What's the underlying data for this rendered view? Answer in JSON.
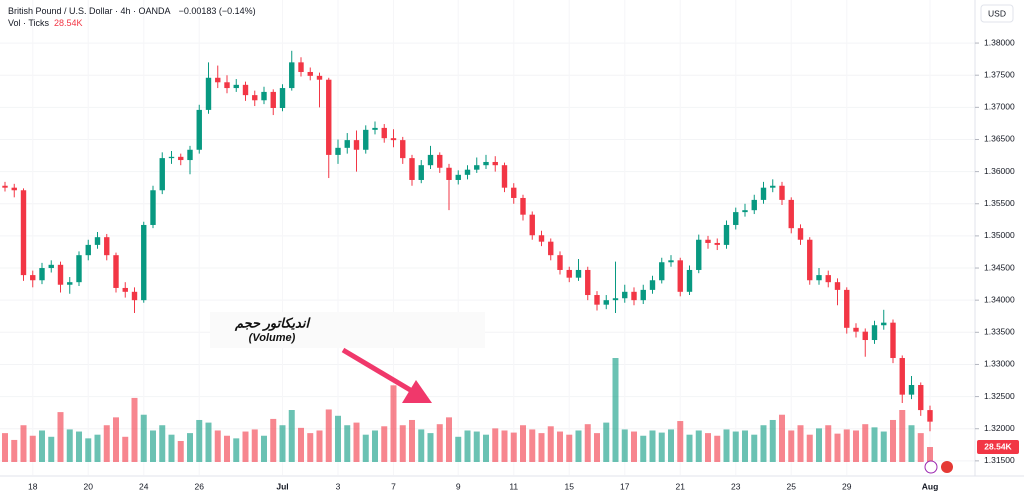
{
  "chart_data": {
    "type": "candlestick",
    "title": "British Pound / U.S. Dollar · 4h · OANDA",
    "change": "−0.00183 (−0.14%)",
    "currency": "USD",
    "up_color": "#089981",
    "down_color": "#f23645",
    "grid": true,
    "ylim": [
      1.3128,
      1.3867
    ],
    "yticks": [
      {
        "value": 1.38,
        "label": "1.38000"
      },
      {
        "value": 1.375,
        "label": "1.37500"
      },
      {
        "value": 1.37,
        "label": "1.37000"
      },
      {
        "value": 1.365,
        "label": "1.36500"
      },
      {
        "value": 1.36,
        "label": "1.36000"
      },
      {
        "value": 1.355,
        "label": "1.35500"
      },
      {
        "value": 1.35,
        "label": "1.35000"
      },
      {
        "value": 1.345,
        "label": "1.34500"
      },
      {
        "value": 1.34,
        "label": "1.34000"
      },
      {
        "value": 1.335,
        "label": "1.33500"
      },
      {
        "value": 1.33,
        "label": "1.33000"
      },
      {
        "value": 1.325,
        "label": "1.32500"
      },
      {
        "value": 1.32,
        "label": "1.32000"
      },
      {
        "value": 1.315,
        "label": "1.31500"
      }
    ],
    "categories": [
      null,
      null,
      null,
      "18",
      null,
      null,
      null,
      null,
      null,
      "20",
      null,
      null,
      null,
      null,
      null,
      "24",
      null,
      null,
      null,
      null,
      null,
      "26",
      null,
      null,
      null,
      null,
      null,
      null,
      null,
      null,
      "Jul",
      null,
      null,
      null,
      null,
      null,
      "3",
      null,
      null,
      null,
      null,
      null,
      "7",
      null,
      null,
      null,
      null,
      null,
      null,
      "9",
      null,
      null,
      null,
      null,
      null,
      "11",
      null,
      null,
      null,
      null,
      null,
      "15",
      null,
      null,
      null,
      null,
      null,
      "17",
      null,
      null,
      null,
      null,
      null,
      "21",
      null,
      null,
      null,
      null,
      null,
      "23",
      null,
      null,
      null,
      null,
      null,
      "25",
      null,
      null,
      null,
      null,
      null,
      "29",
      null,
      null,
      null,
      null,
      null,
      null,
      null,
      null,
      "Aug"
    ],
    "series": [
      {
        "name": "GBPUSD",
        "ohlc": [
          [
            1.3578,
            1.3584,
            1.3569,
            1.3575
          ],
          [
            1.3575,
            1.3581,
            1.356,
            1.3571
          ],
          [
            1.3571,
            1.3574,
            1.343,
            1.3439
          ],
          [
            1.3439,
            1.3446,
            1.342,
            1.3431
          ],
          [
            1.3431,
            1.3458,
            1.3425,
            1.345
          ],
          [
            1.345,
            1.3462,
            1.3443,
            1.3455
          ],
          [
            1.3455,
            1.346,
            1.3412,
            1.3424
          ],
          [
            1.3424,
            1.3436,
            1.341,
            1.3428
          ],
          [
            1.3428,
            1.3476,
            1.3422,
            1.347
          ],
          [
            1.347,
            1.3494,
            1.3462,
            1.3486
          ],
          [
            1.3486,
            1.3506,
            1.348,
            1.3498
          ],
          [
            1.3498,
            1.3503,
            1.3462,
            1.347
          ],
          [
            1.347,
            1.3474,
            1.3412,
            1.3419
          ],
          [
            1.3419,
            1.3428,
            1.3404,
            1.3413
          ],
          [
            1.3413,
            1.342,
            1.338,
            1.34
          ],
          [
            1.34,
            1.3522,
            1.3396,
            1.3517
          ],
          [
            1.3517,
            1.3578,
            1.3512,
            1.3571
          ],
          [
            1.3571,
            1.363,
            1.3565,
            1.3621
          ],
          [
            1.3621,
            1.3632,
            1.3612,
            1.3623
          ],
          [
            1.3623,
            1.3628,
            1.361,
            1.3618
          ],
          [
            1.3618,
            1.364,
            1.3596,
            1.3634
          ],
          [
            1.3634,
            1.3704,
            1.3628,
            1.3696
          ],
          [
            1.3696,
            1.377,
            1.369,
            1.3746
          ],
          [
            1.3746,
            1.3765,
            1.373,
            1.3739
          ],
          [
            1.3739,
            1.375,
            1.3722,
            1.373
          ],
          [
            1.373,
            1.3744,
            1.3724,
            1.3735
          ],
          [
            1.3735,
            1.374,
            1.371,
            1.3719
          ],
          [
            1.3719,
            1.3726,
            1.3702,
            1.3711
          ],
          [
            1.3711,
            1.3732,
            1.3705,
            1.3724
          ],
          [
            1.3724,
            1.3728,
            1.3688,
            1.3699
          ],
          [
            1.3699,
            1.3736,
            1.3694,
            1.373
          ],
          [
            1.373,
            1.3788,
            1.3726,
            1.377
          ],
          [
            1.377,
            1.3778,
            1.3748,
            1.3755
          ],
          [
            1.3755,
            1.3762,
            1.3742,
            1.3749
          ],
          [
            1.3749,
            1.3754,
            1.37,
            1.3743
          ],
          [
            1.3743,
            1.3746,
            1.359,
            1.3626
          ],
          [
            1.3626,
            1.365,
            1.3612,
            1.3637
          ],
          [
            1.3637,
            1.366,
            1.3628,
            1.3649
          ],
          [
            1.3649,
            1.3664,
            1.36,
            1.3634
          ],
          [
            1.3634,
            1.3672,
            1.3628,
            1.3665
          ],
          [
            1.3665,
            1.3678,
            1.3658,
            1.3668
          ],
          [
            1.3668,
            1.3674,
            1.3645,
            1.3652
          ],
          [
            1.3652,
            1.3666,
            1.3638,
            1.3649
          ],
          [
            1.3649,
            1.3654,
            1.3612,
            1.3621
          ],
          [
            1.3621,
            1.3626,
            1.3578,
            1.3587
          ],
          [
            1.3587,
            1.3618,
            1.3582,
            1.361
          ],
          [
            1.361,
            1.364,
            1.3604,
            1.3626
          ],
          [
            1.3626,
            1.363,
            1.3598,
            1.3606
          ],
          [
            1.3606,
            1.3612,
            1.354,
            1.3587
          ],
          [
            1.3587,
            1.3602,
            1.358,
            1.3595
          ],
          [
            1.3595,
            1.361,
            1.3588,
            1.3603
          ],
          [
            1.3603,
            1.3622,
            1.3598,
            1.361
          ],
          [
            1.361,
            1.3626,
            1.3604,
            1.3615
          ],
          [
            1.3615,
            1.3624,
            1.36,
            1.361
          ],
          [
            1.361,
            1.3614,
            1.3568,
            1.3575
          ],
          [
            1.3575,
            1.3582,
            1.355,
            1.3559
          ],
          [
            1.3559,
            1.3564,
            1.3524,
            1.3533
          ],
          [
            1.3533,
            1.3538,
            1.3494,
            1.3501
          ],
          [
            1.3501,
            1.3508,
            1.3484,
            1.3491
          ],
          [
            1.3491,
            1.3496,
            1.3462,
            1.347
          ],
          [
            1.347,
            1.3476,
            1.344,
            1.3447
          ],
          [
            1.3447,
            1.3452,
            1.3428,
            1.3435
          ],
          [
            1.3435,
            1.3464,
            1.343,
            1.3447
          ],
          [
            1.3447,
            1.3452,
            1.34,
            1.3408
          ],
          [
            1.3408,
            1.3414,
            1.3384,
            1.3393
          ],
          [
            1.3393,
            1.3408,
            1.3386,
            1.34
          ],
          [
            1.34,
            1.346,
            1.338,
            1.3403
          ],
          [
            1.3403,
            1.3424,
            1.3396,
            1.3413
          ],
          [
            1.3413,
            1.342,
            1.3392,
            1.34
          ],
          [
            1.34,
            1.3424,
            1.3394,
            1.3416
          ],
          [
            1.3416,
            1.3438,
            1.341,
            1.3431
          ],
          [
            1.3431,
            1.3466,
            1.3426,
            1.3459
          ],
          [
            1.3459,
            1.347,
            1.3452,
            1.3462
          ],
          [
            1.3462,
            1.3466,
            1.3406,
            1.3413
          ],
          [
            1.3413,
            1.3454,
            1.3408,
            1.3447
          ],
          [
            1.3447,
            1.3502,
            1.3442,
            1.3494
          ],
          [
            1.3494,
            1.35,
            1.348,
            1.3489
          ],
          [
            1.3489,
            1.3496,
            1.3478,
            1.3486
          ],
          [
            1.3486,
            1.3524,
            1.348,
            1.3517
          ],
          [
            1.3517,
            1.3544,
            1.351,
            1.3537
          ],
          [
            1.3537,
            1.355,
            1.353,
            1.354
          ],
          [
            1.354,
            1.3564,
            1.3534,
            1.3556
          ],
          [
            1.3556,
            1.3584,
            1.355,
            1.3575
          ],
          [
            1.3575,
            1.3588,
            1.3568,
            1.3578
          ],
          [
            1.3578,
            1.3584,
            1.3548,
            1.3556
          ],
          [
            1.3556,
            1.356,
            1.3504,
            1.3512
          ],
          [
            1.3512,
            1.3518,
            1.3486,
            1.3494
          ],
          [
            1.3494,
            1.3498,
            1.3424,
            1.3431
          ],
          [
            1.3431,
            1.345,
            1.3424,
            1.3439
          ],
          [
            1.3439,
            1.3446,
            1.342,
            1.3428
          ],
          [
            1.3428,
            1.3434,
            1.3392,
            1.3416
          ],
          [
            1.3416,
            1.342,
            1.3348,
            1.3357
          ],
          [
            1.3357,
            1.3364,
            1.3342,
            1.3351
          ],
          [
            1.3351,
            1.3356,
            1.3312,
            1.3338
          ],
          [
            1.3338,
            1.3368,
            1.3332,
            1.3361
          ],
          [
            1.3361,
            1.3385,
            1.3354,
            1.3365
          ],
          [
            1.3365,
            1.337,
            1.3302,
            1.331
          ],
          [
            1.331,
            1.3314,
            1.324,
            1.3253
          ],
          [
            1.3253,
            1.3282,
            1.3246,
            1.3268
          ],
          [
            1.3268,
            1.3272,
            1.322,
            1.3229
          ],
          [
            1.3229,
            1.3236,
            1.3196,
            1.3211
          ]
        ]
      }
    ],
    "volume": {
      "label": "Vol · Ticks",
      "last_value_label": "28.54K",
      "values": [
        55000,
        42000,
        70000,
        50000,
        60000,
        48000,
        95000,
        62000,
        58000,
        45000,
        52000,
        70000,
        85000,
        48000,
        122000,
        90000,
        60000,
        70000,
        52000,
        40000,
        55000,
        80000,
        75000,
        60000,
        50000,
        45000,
        58000,
        62000,
        50000,
        82000,
        70000,
        99000,
        65000,
        55000,
        60000,
        100000,
        88000,
        70000,
        75000,
        52000,
        60000,
        68000,
        146000,
        70000,
        80000,
        62000,
        55000,
        72000,
        85000,
        48000,
        60000,
        58000,
        52000,
        64000,
        60000,
        56000,
        70000,
        62000,
        55000,
        68000,
        58000,
        52000,
        60000,
        72000,
        55000,
        75000,
        198000,
        62000,
        58000,
        50000,
        60000,
        56000,
        62000,
        78000,
        52000,
        60000,
        55000,
        50000,
        62000,
        58000,
        60000,
        52000,
        70000,
        80000,
        90000,
        60000,
        70000,
        52000,
        64000,
        70000,
        54000,
        62000,
        60000,
        72000,
        66000,
        58000,
        80000,
        99000,
        70000,
        55000,
        28540
      ]
    },
    "annotation": {
      "title": "اندیکاتور حجم",
      "subtitle": "(Volume)"
    }
  }
}
